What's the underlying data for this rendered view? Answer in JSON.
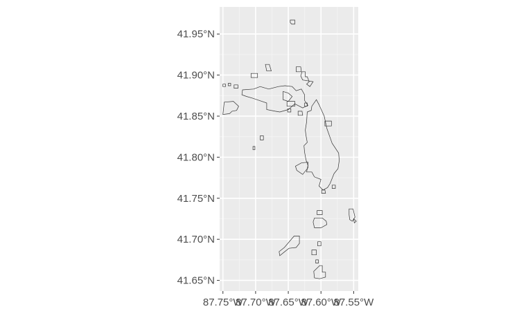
{
  "chart_data": {
    "type": "map",
    "title": "",
    "xlabel": "",
    "ylabel": "",
    "grid": true,
    "legend": "none",
    "xlim": [
      -87.755,
      -87.543
    ],
    "ylim": [
      41.637,
      41.983
    ],
    "x_ticks": [
      {
        "value": -87.75,
        "label": "87.75°W"
      },
      {
        "value": -87.7,
        "label": "87.70°W"
      },
      {
        "value": -87.65,
        "label": "87.65°W"
      },
      {
        "value": -87.6,
        "label": "87.60°W"
      },
      {
        "value": -87.55,
        "label": "87.55°W"
      }
    ],
    "y_ticks": [
      {
        "value": 41.65,
        "label": "41.65°N"
      },
      {
        "value": 41.7,
        "label": "41.70°N"
      },
      {
        "value": 41.75,
        "label": "41.75°N"
      },
      {
        "value": 41.8,
        "label": "41.80°N"
      },
      {
        "value": 41.85,
        "label": "41.85°N"
      },
      {
        "value": 41.9,
        "label": "41.90°N"
      },
      {
        "value": 41.95,
        "label": "41.95°N"
      }
    ],
    "colors": {
      "panel": "#ebebeb",
      "grid": "#ffffff",
      "outline": "#333333",
      "text": "#4d4d4d"
    },
    "polygons": [
      [
        [
          -87.647,
          41.967
        ],
        [
          -87.64,
          41.967
        ],
        [
          -87.64,
          41.962
        ],
        [
          -87.645,
          41.962
        ],
        [
          -87.647,
          41.964
        ]
      ],
      [
        [
          -87.685,
          41.913
        ],
        [
          -87.679,
          41.913
        ],
        [
          -87.676,
          41.905
        ],
        [
          -87.683,
          41.905
        ]
      ],
      [
        [
          -87.638,
          41.91
        ],
        [
          -87.631,
          41.91
        ],
        [
          -87.63,
          41.904
        ],
        [
          -87.638,
          41.904
        ]
      ],
      [
        [
          -87.629,
          41.904
        ],
        [
          -87.624,
          41.904
        ],
        [
          -87.624,
          41.898
        ],
        [
          -87.621,
          41.898
        ],
        [
          -87.618,
          41.892
        ],
        [
          -87.622,
          41.889
        ],
        [
          -87.617,
          41.886
        ],
        [
          -87.612,
          41.892
        ],
        [
          -87.628,
          41.894
        ],
        [
          -87.631,
          41.899
        ]
      ],
      [
        [
          -87.707,
          41.902
        ],
        [
          -87.697,
          41.902
        ],
        [
          -87.697,
          41.897
        ],
        [
          -87.707,
          41.897
        ]
      ],
      [
        [
          -87.72,
          41.882
        ],
        [
          -87.703,
          41.883
        ],
        [
          -87.693,
          41.886
        ],
        [
          -87.68,
          41.883
        ],
        [
          -87.665,
          41.886
        ],
        [
          -87.655,
          41.887
        ],
        [
          -87.644,
          41.886
        ],
        [
          -87.638,
          41.881
        ],
        [
          -87.63,
          41.883
        ],
        [
          -87.625,
          41.876
        ],
        [
          -87.625,
          41.869
        ],
        [
          -87.62,
          41.863
        ],
        [
          -87.628,
          41.86
        ],
        [
          -87.64,
          41.865
        ],
        [
          -87.65,
          41.858
        ],
        [
          -87.663,
          41.855
        ],
        [
          -87.67,
          41.856
        ],
        [
          -87.683,
          41.858
        ],
        [
          -87.683,
          41.866
        ],
        [
          -87.694,
          41.869
        ],
        [
          -87.705,
          41.872
        ],
        [
          -87.714,
          41.874
        ],
        [
          -87.721,
          41.876
        ]
      ],
      [
        [
          -87.658,
          41.88
        ],
        [
          -87.65,
          41.878
        ],
        [
          -87.644,
          41.874
        ],
        [
          -87.65,
          41.868
        ],
        [
          -87.658,
          41.87
        ]
      ],
      [
        [
          -87.733,
          41.888
        ],
        [
          -87.727,
          41.888
        ],
        [
          -87.727,
          41.884
        ],
        [
          -87.733,
          41.884
        ]
      ],
      [
        [
          -87.742,
          41.89
        ],
        [
          -87.738,
          41.89
        ],
        [
          -87.738,
          41.887
        ],
        [
          -87.742,
          41.887
        ]
      ],
      [
        [
          -87.652,
          41.868
        ],
        [
          -87.64,
          41.868
        ],
        [
          -87.64,
          41.862
        ],
        [
          -87.652,
          41.862
        ]
      ],
      [
        [
          -87.75,
          41.889
        ],
        [
          -87.746,
          41.889
        ],
        [
          -87.746,
          41.886
        ],
        [
          -87.75,
          41.886
        ]
      ],
      [
        [
          -87.748,
          41.867
        ],
        [
          -87.734,
          41.868
        ],
        [
          -87.726,
          41.862
        ],
        [
          -87.729,
          41.857
        ],
        [
          -87.736,
          41.856
        ],
        [
          -87.74,
          41.853
        ],
        [
          -87.75,
          41.852
        ]
      ],
      [
        [
          -87.625,
          41.866
        ],
        [
          -87.621,
          41.866
        ],
        [
          -87.621,
          41.862
        ],
        [
          -87.625,
          41.862
        ]
      ],
      [
        [
          -87.651,
          41.859
        ],
        [
          -87.646,
          41.859
        ],
        [
          -87.646,
          41.855
        ],
        [
          -87.651,
          41.855
        ]
      ],
      [
        [
          -87.635,
          41.856
        ],
        [
          -87.629,
          41.856
        ],
        [
          -87.628,
          41.851
        ],
        [
          -87.635,
          41.851
        ]
      ],
      [
        [
          -87.621,
          41.855
        ],
        [
          -87.615,
          41.857
        ],
        [
          -87.614,
          41.862
        ],
        [
          -87.607,
          41.87
        ],
        [
          -87.603,
          41.864
        ],
        [
          -87.595,
          41.85
        ],
        [
          -87.591,
          41.835
        ],
        [
          -87.583,
          41.817
        ],
        [
          -87.573,
          41.805
        ],
        [
          -87.572,
          41.796
        ],
        [
          -87.574,
          41.786
        ],
        [
          -87.58,
          41.78
        ],
        [
          -87.586,
          41.768
        ],
        [
          -87.59,
          41.763
        ],
        [
          -87.597,
          41.76
        ],
        [
          -87.603,
          41.765
        ],
        [
          -87.6,
          41.773
        ],
        [
          -87.61,
          41.776
        ],
        [
          -87.614,
          41.782
        ],
        [
          -87.622,
          41.782
        ],
        [
          -87.62,
          41.79
        ],
        [
          -87.623,
          41.797
        ],
        [
          -87.625,
          41.806
        ],
        [
          -87.626,
          41.814
        ],
        [
          -87.621,
          41.818
        ],
        [
          -87.623,
          41.827
        ],
        [
          -87.624,
          41.833
        ],
        [
          -87.622,
          41.843
        ]
      ],
      [
        [
          -87.594,
          41.844
        ],
        [
          -87.584,
          41.844
        ],
        [
          -87.584,
          41.838
        ],
        [
          -87.594,
          41.838
        ]
      ],
      [
        [
          -87.693,
          41.826
        ],
        [
          -87.688,
          41.826
        ],
        [
          -87.688,
          41.821
        ],
        [
          -87.693,
          41.821
        ]
      ],
      [
        [
          -87.704,
          41.813
        ],
        [
          -87.701,
          41.813
        ],
        [
          -87.701,
          41.809
        ],
        [
          -87.704,
          41.809
        ]
      ],
      [
        [
          -87.63,
          41.793
        ],
        [
          -87.62,
          41.794
        ],
        [
          -87.62,
          41.787
        ],
        [
          -87.628,
          41.779
        ],
        [
          -87.637,
          41.784
        ],
        [
          -87.639,
          41.789
        ]
      ],
      [
        [
          -87.599,
          41.76
        ],
        [
          -87.594,
          41.76
        ],
        [
          -87.593,
          41.756
        ],
        [
          -87.599,
          41.756
        ]
      ],
      [
        [
          -87.583,
          41.766
        ],
        [
          -87.578,
          41.766
        ],
        [
          -87.578,
          41.762
        ],
        [
          -87.583,
          41.762
        ]
      ],
      [
        [
          -87.606,
          41.735
        ],
        [
          -87.598,
          41.735
        ],
        [
          -87.598,
          41.73
        ],
        [
          -87.606,
          41.73
        ]
      ],
      [
        [
          -87.61,
          41.726
        ],
        [
          -87.598,
          41.726
        ],
        [
          -87.592,
          41.722
        ],
        [
          -87.591,
          41.718
        ],
        [
          -87.6,
          41.714
        ],
        [
          -87.61,
          41.714
        ],
        [
          -87.612,
          41.721
        ]
      ],
      [
        [
          -87.557,
          41.737
        ],
        [
          -87.551,
          41.737
        ],
        [
          -87.548,
          41.727
        ],
        [
          -87.552,
          41.722
        ],
        [
          -87.556,
          41.724
        ],
        [
          -87.557,
          41.73
        ]
      ],
      [
        [
          -87.55,
          41.725
        ],
        [
          -87.546,
          41.722
        ],
        [
          -87.549,
          41.72
        ]
      ],
      [
        [
          -87.641,
          41.704
        ],
        [
          -87.633,
          41.704
        ],
        [
          -87.633,
          41.695
        ],
        [
          -87.638,
          41.69
        ],
        [
          -87.649,
          41.689
        ],
        [
          -87.657,
          41.684
        ],
        [
          -87.663,
          41.68
        ],
        [
          -87.664,
          41.685
        ],
        [
          -87.656,
          41.69
        ]
      ],
      [
        [
          -87.605,
          41.697
        ],
        [
          -87.6,
          41.697
        ],
        [
          -87.6,
          41.692
        ],
        [
          -87.605,
          41.692
        ]
      ],
      [
        [
          -87.614,
          41.687
        ],
        [
          -87.607,
          41.687
        ],
        [
          -87.607,
          41.681
        ],
        [
          -87.614,
          41.681
        ]
      ],
      [
        [
          -87.608,
          41.675
        ],
        [
          -87.604,
          41.675
        ],
        [
          -87.604,
          41.671
        ],
        [
          -87.608,
          41.671
        ]
      ],
      [
        [
          -87.602,
          41.668
        ],
        [
          -87.598,
          41.668
        ],
        [
          -87.598,
          41.66
        ],
        [
          -87.593,
          41.66
        ],
        [
          -87.593,
          41.654
        ],
        [
          -87.602,
          41.652
        ],
        [
          -87.61,
          41.653
        ],
        [
          -87.611,
          41.661
        ]
      ]
    ]
  }
}
